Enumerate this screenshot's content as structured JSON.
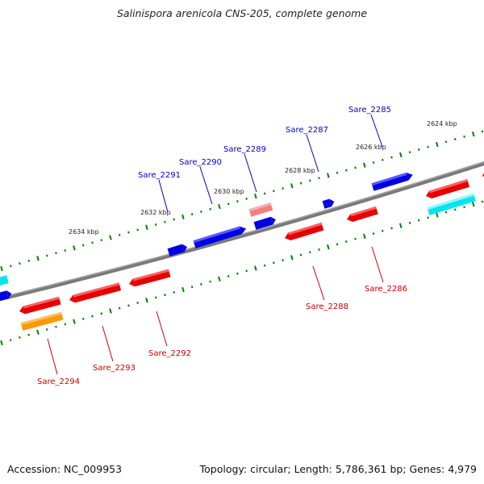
{
  "title": "Salinispora arenicola CNS-205, complete genome",
  "footer": {
    "accession": "Accession: NC_009953",
    "topology": "Topology: circular; Length: 5,786,361 bp; Genes: 4,979"
  },
  "colors": {
    "backbone": "#7a7a7a",
    "forward_strand": "#0000e6",
    "reverse_strand": "#e60000",
    "light_red": "#f08080",
    "cyan": "#00e5ee",
    "orange": "#ff9900",
    "tick": "#008000"
  },
  "kbp_labels": [
    "2624 kbp",
    "2626 kbp",
    "2628 kbp",
    "2630 kbp",
    "2632 kbp",
    "2634 kbp"
  ],
  "gene_labels": [
    "Sare_2285",
    "Sare_2286",
    "Sare_2287",
    "Sare_2288",
    "Sare_2289",
    "Sare_2290",
    "Sare_2291",
    "Sare_2292",
    "Sare_2293",
    "Sare_2294"
  ]
}
